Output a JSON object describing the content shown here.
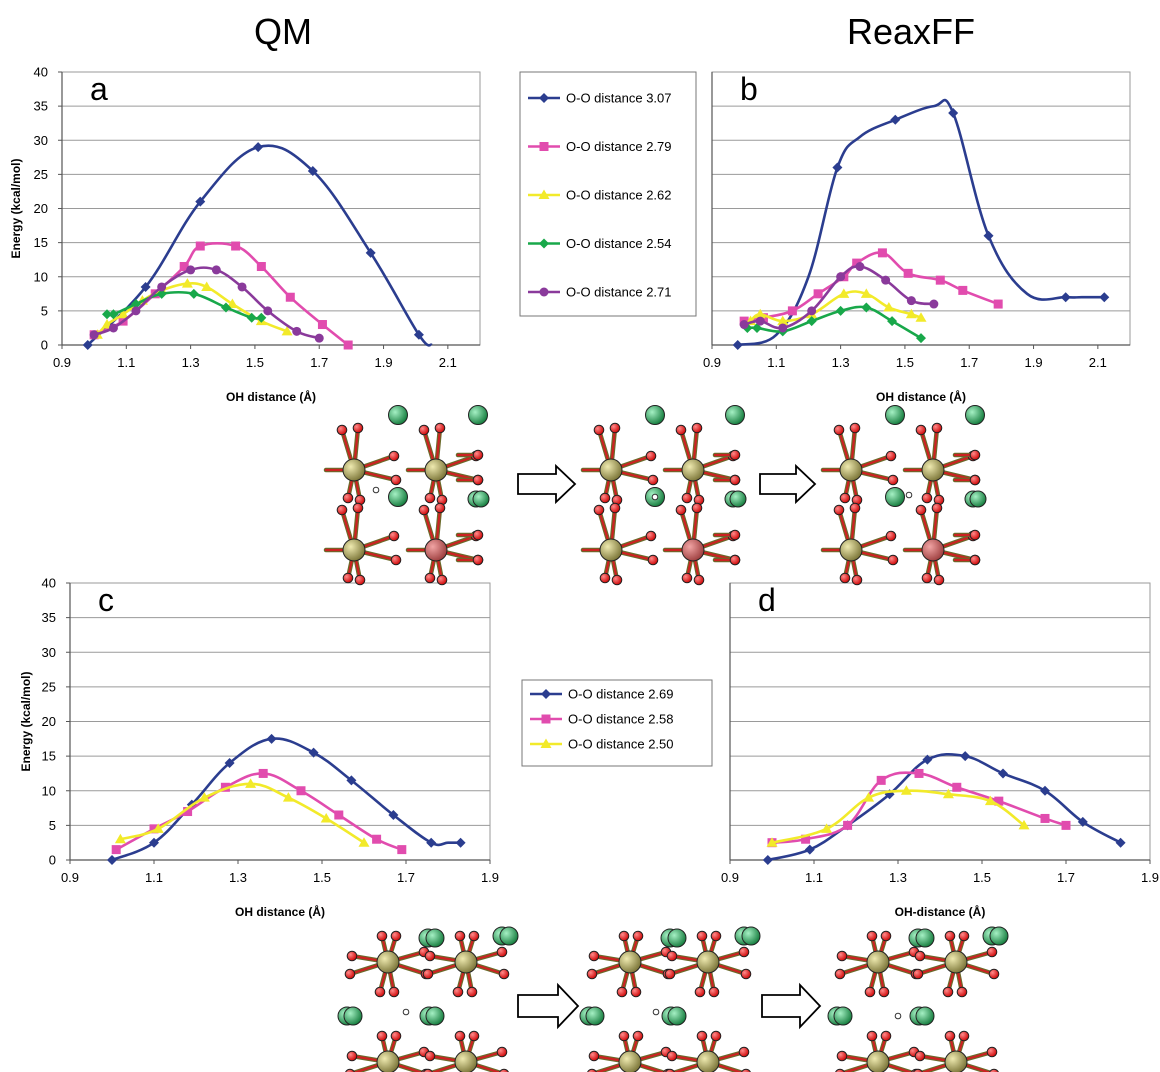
{
  "headers": {
    "left": "QM",
    "right": "ReaxFF"
  },
  "chart_data": [
    {
      "id": "a",
      "type": "line",
      "panel_label": "a",
      "xlabel": "OH distance (Å)",
      "ylabel": "Energy (kcal/mol)",
      "xlim": [
        0.9,
        2.2
      ],
      "ylim": [
        0,
        40
      ],
      "xticks": [
        "0.9",
        "1.1",
        "1.3",
        "1.5",
        "1.7",
        "1.9",
        "2.1"
      ],
      "yticks": [
        "0",
        "5",
        "10",
        "15",
        "20",
        "25",
        "30",
        "35",
        "40"
      ],
      "grid": true,
      "legend": "right",
      "series": [
        {
          "name": "O-O distance 3.07",
          "color": "#2b3d8f",
          "marker": "diamond",
          "x": [
            0.98,
            1.16,
            1.33,
            1.51,
            1.68,
            1.86,
            2.01,
            2.05
          ],
          "y": [
            0,
            8.5,
            21,
            29,
            25.5,
            13.5,
            1.5,
            0
          ],
          "marked": [
            true,
            true,
            true,
            true,
            true,
            true,
            true,
            false
          ]
        },
        {
          "name": "O-O distance 2.79",
          "color": "#e14cae",
          "marker": "square",
          "x": [
            1.0,
            1.09,
            1.19,
            1.28,
            1.33,
            1.44,
            1.52,
            1.61,
            1.71,
            1.79
          ],
          "y": [
            1.5,
            3.5,
            7.5,
            11.5,
            14.5,
            14.5,
            11.5,
            7.0,
            3.0,
            0
          ],
          "marked": [
            true,
            true,
            true,
            true,
            true,
            true,
            true,
            true,
            true,
            true
          ]
        },
        {
          "name": "O-O distance 2.62",
          "color": "#f2ea2a",
          "marker": "triangle",
          "x": [
            1.01,
            1.04,
            1.09,
            1.15,
            1.21,
            1.29,
            1.35,
            1.43,
            1.52,
            1.6
          ],
          "y": [
            1.5,
            3.0,
            4.5,
            6.5,
            8.0,
            9.0,
            8.5,
            6.0,
            3.5,
            2.0
          ],
          "marked": [
            true,
            true,
            true,
            true,
            true,
            true,
            true,
            true,
            true,
            true
          ]
        },
        {
          "name": "O-O distance 2.54",
          "color": "#18a84a",
          "marker": "diamond",
          "x": [
            1.04,
            1.06,
            1.13,
            1.21,
            1.31,
            1.41,
            1.49,
            1.52
          ],
          "y": [
            4.5,
            4.5,
            6.0,
            7.5,
            7.5,
            5.5,
            4.0,
            4.0
          ],
          "marked": [
            true,
            true,
            true,
            true,
            true,
            true,
            true,
            true
          ]
        },
        {
          "name": "O-O distance 2.71",
          "color": "#8a3a9b",
          "marker": "circle",
          "x": [
            1.0,
            1.06,
            1.13,
            1.21,
            1.3,
            1.38,
            1.46,
            1.54,
            1.63,
            1.7
          ],
          "y": [
            1.5,
            2.5,
            5.0,
            8.5,
            11.0,
            11.0,
            8.5,
            5.0,
            2.0,
            1.0
          ],
          "marked": [
            true,
            true,
            true,
            true,
            true,
            true,
            true,
            true,
            true,
            true
          ]
        }
      ]
    },
    {
      "id": "b",
      "type": "line",
      "panel_label": "b",
      "xlabel": "OH distance (Å)",
      "ylabel": "",
      "xlim": [
        0.9,
        2.2
      ],
      "ylim": [
        0,
        40
      ],
      "xticks": [
        "0.9",
        "1.1",
        "1.3",
        "1.5",
        "1.7",
        "1.9",
        "2.1"
      ],
      "yticks": [],
      "grid": true,
      "series": [
        {
          "name": "O-O distance 3.07",
          "color": "#2b3d8f",
          "marker": "diamond",
          "x": [
            0.98,
            1.1,
            1.2,
            1.29,
            1.36,
            1.47,
            1.59,
            1.65,
            1.76,
            1.88,
            2.0,
            2.05,
            2.12
          ],
          "y": [
            0,
            1.5,
            10,
            26,
            30.5,
            33,
            35,
            34,
            16,
            7.5,
            7.0,
            7.0,
            7.0
          ],
          "marked": [
            true,
            false,
            false,
            true,
            false,
            true,
            false,
            true,
            true,
            false,
            true,
            false,
            true
          ]
        },
        {
          "name": "O-O distance 2.79",
          "color": "#e14cae",
          "marker": "square",
          "x": [
            1.0,
            1.06,
            1.15,
            1.23,
            1.31,
            1.35,
            1.43,
            1.51,
            1.61,
            1.68,
            1.79
          ],
          "y": [
            3.5,
            4.0,
            5.0,
            7.5,
            10,
            12,
            13.5,
            10.5,
            9.5,
            8.0,
            6.0
          ],
          "marked": [
            true,
            true,
            true,
            true,
            true,
            true,
            true,
            true,
            true,
            true,
            true
          ]
        },
        {
          "name": "O-O distance 2.62",
          "color": "#f2ea2a",
          "marker": "triangle",
          "x": [
            1.02,
            1.05,
            1.12,
            1.21,
            1.31,
            1.38,
            1.45,
            1.52,
            1.55
          ],
          "y": [
            3.5,
            4.5,
            3.5,
            4.5,
            7.5,
            7.5,
            5.5,
            4.5,
            4.0
          ],
          "marked": [
            true,
            true,
            true,
            true,
            true,
            true,
            true,
            true,
            true
          ]
        },
        {
          "name": "O-O distance 2.54",
          "color": "#18a84a",
          "marker": "diamond",
          "x": [
            1.01,
            1.04,
            1.12,
            1.21,
            1.3,
            1.38,
            1.46,
            1.55
          ],
          "y": [
            2.5,
            2.5,
            2.0,
            3.5,
            5.0,
            5.5,
            3.5,
            1.0
          ],
          "marked": [
            true,
            true,
            true,
            true,
            true,
            true,
            true,
            true
          ]
        },
        {
          "name": "O-O distance 2.71",
          "color": "#8a3a9b",
          "marker": "circle",
          "x": [
            1.0,
            1.05,
            1.12,
            1.21,
            1.3,
            1.36,
            1.44,
            1.52,
            1.59
          ],
          "y": [
            3.0,
            3.5,
            2.5,
            5.0,
            10,
            11.5,
            9.5,
            6.5,
            6.0
          ],
          "marked": [
            true,
            true,
            true,
            true,
            true,
            true,
            true,
            true,
            true
          ]
        }
      ]
    },
    {
      "id": "c",
      "type": "line",
      "panel_label": "c",
      "xlabel": "OH distance (Å)",
      "ylabel": "Energy (kcal/mol)",
      "xlim": [
        0.9,
        1.9
      ],
      "ylim": [
        0,
        40
      ],
      "xticks": [
        "0.9",
        "1.1",
        "1.3",
        "1.5",
        "1.7",
        "1.9"
      ],
      "yticks": [
        "0",
        "5",
        "10",
        "15",
        "20",
        "25",
        "30",
        "35",
        "40"
      ],
      "grid": true,
      "legend": "right",
      "series": [
        {
          "name": "O-O distance 2.69",
          "color": "#2b3d8f",
          "marker": "diamond",
          "x": [
            1.0,
            1.1,
            1.19,
            1.28,
            1.38,
            1.48,
            1.57,
            1.67,
            1.76,
            1.8,
            1.83
          ],
          "y": [
            0,
            2.5,
            8.0,
            14,
            17.5,
            15.5,
            11.5,
            6.5,
            2.5,
            2.5,
            2.5
          ],
          "marked": [
            true,
            true,
            true,
            true,
            true,
            true,
            true,
            true,
            true,
            false,
            true
          ]
        },
        {
          "name": "O-O distance 2.58",
          "color": "#e14cae",
          "marker": "square",
          "x": [
            1.01,
            1.1,
            1.18,
            1.27,
            1.36,
            1.45,
            1.54,
            1.63,
            1.69
          ],
          "y": [
            1.5,
            4.5,
            7.0,
            10.5,
            12.5,
            10,
            6.5,
            3.0,
            1.5
          ],
          "marked": [
            true,
            true,
            true,
            true,
            true,
            true,
            true,
            true,
            true
          ]
        },
        {
          "name": "O-O distance 2.50",
          "color": "#f2ea2a",
          "marker": "triangle",
          "x": [
            1.02,
            1.11,
            1.22,
            1.33,
            1.42,
            1.51,
            1.6
          ],
          "y": [
            3.0,
            4.5,
            9.0,
            11,
            9.0,
            6.0,
            2.5
          ],
          "marked": [
            true,
            true,
            true,
            true,
            true,
            true,
            true
          ]
        }
      ]
    },
    {
      "id": "d",
      "type": "line",
      "panel_label": "d",
      "xlabel": "OH-distance (Å)",
      "ylabel": "",
      "xlim": [
        0.9,
        1.9
      ],
      "ylim": [
        0,
        40
      ],
      "xticks": [
        "0.9",
        "1.1",
        "1.3",
        "1.5",
        "1.7",
        "1.9"
      ],
      "yticks": [],
      "grid": true,
      "series": [
        {
          "name": "O-O distance 2.69",
          "color": "#2b3d8f",
          "marker": "diamond",
          "x": [
            0.99,
            1.09,
            1.18,
            1.28,
            1.37,
            1.46,
            1.55,
            1.65,
            1.74,
            1.83
          ],
          "y": [
            0,
            1.5,
            5.0,
            9.5,
            14.5,
            15,
            12.5,
            10,
            5.5,
            2.5
          ],
          "marked": [
            true,
            true,
            true,
            true,
            true,
            true,
            true,
            true,
            true,
            true
          ]
        },
        {
          "name": "O-O distance 2.58",
          "color": "#e14cae",
          "marker": "square",
          "x": [
            1.0,
            1.08,
            1.18,
            1.26,
            1.35,
            1.44,
            1.54,
            1.65,
            1.7
          ],
          "y": [
            2.5,
            3.0,
            5.0,
            11.5,
            12.5,
            10.5,
            8.5,
            6.0,
            5.0
          ],
          "marked": [
            true,
            true,
            true,
            true,
            true,
            true,
            true,
            true,
            true
          ]
        },
        {
          "name": "O-O distance 2.50",
          "color": "#f2ea2a",
          "marker": "triangle",
          "x": [
            1.0,
            1.13,
            1.23,
            1.32,
            1.42,
            1.52,
            1.6
          ],
          "y": [
            2.5,
            4.5,
            9.0,
            10,
            9.5,
            8.5,
            5.0
          ],
          "marked": [
            true,
            true,
            true,
            true,
            true,
            true,
            true
          ]
        }
      ]
    }
  ]
}
